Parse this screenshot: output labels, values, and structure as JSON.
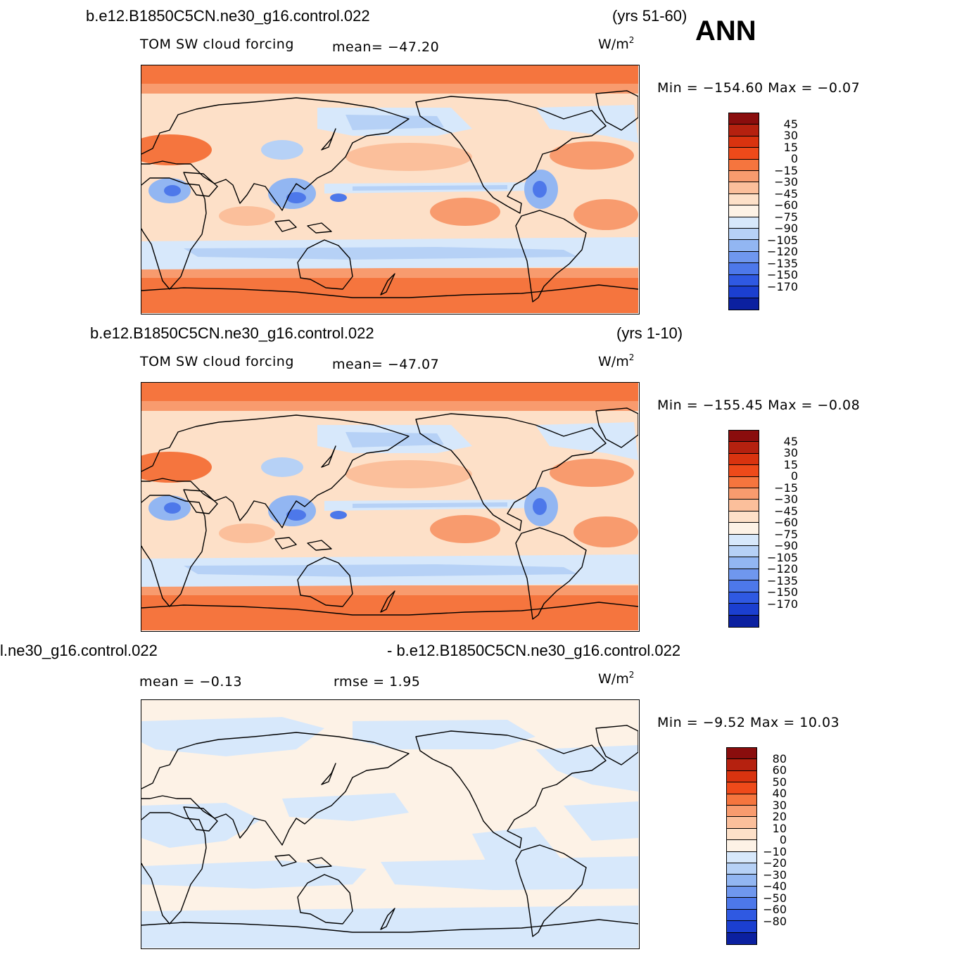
{
  "header": {
    "season": "ANN"
  },
  "panels": [
    {
      "id": "test",
      "case_left": "b.e12.B1850C5CN.ne30_g16.control.022",
      "case_right": "(yrs 51-60)",
      "field": "TOM SW cloud forcing",
      "stat1": "mean=  −47.20",
      "stat2": "",
      "units_base": "W/m",
      "units_exp": "2",
      "minmax": "Min  =  −154.60  Max  =    −0.07",
      "levels": [
        "45",
        "30",
        "15",
        "0",
        "−15",
        "−30",
        "−45",
        "−60",
        "−75",
        "−90",
        "−105",
        "−120",
        "−135",
        "−150",
        "−170"
      ],
      "colors": [
        "#8a0d0d",
        "#b5210f",
        "#d9330f",
        "#ee4a1a",
        "#f5753e",
        "#f89b6e",
        "#fbbf9b",
        "#fde0c8",
        "#fdf2e6",
        "#d7e8fb",
        "#b6d1f6",
        "#92b6f2",
        "#6f97ee",
        "#4d78ea",
        "#2f59e2",
        "#1b3fd0",
        "#0b20a0"
      ]
    },
    {
      "id": "control",
      "case_left": "b.e12.B1850C5CN.ne30_g16.control.022",
      "case_right": "(yrs 1-10)",
      "field": "TOM SW cloud forcing",
      "stat1": "mean=  −47.07",
      "stat2": "",
      "units_base": "W/m",
      "units_exp": "2",
      "minmax": "Min  =  −155.45  Max  =    −0.08",
      "levels": [
        "45",
        "30",
        "15",
        "0",
        "−15",
        "−30",
        "−45",
        "−60",
        "−75",
        "−90",
        "−105",
        "−120",
        "−135",
        "−150",
        "−170"
      ],
      "colors": [
        "#8a0d0d",
        "#b5210f",
        "#d9330f",
        "#ee4a1a",
        "#f5753e",
        "#f89b6e",
        "#fbbf9b",
        "#fde0c8",
        "#fdf2e6",
        "#d7e8fb",
        "#b6d1f6",
        "#92b6f2",
        "#6f97ee",
        "#4d78ea",
        "#2f59e2",
        "#1b3fd0",
        "#0b20a0"
      ]
    },
    {
      "id": "difference",
      "case_left": "l.ne30_g16.control.022",
      "case_right": "- b.e12.B1850C5CN.ne30_g16.control.022",
      "field": "",
      "stat1": "mean  =    −0.13",
      "stat2": "rmse  =     1.95",
      "units_base": "W/m",
      "units_exp": "2",
      "minmax": "Min  =    −9.52  Max  =    10.03",
      "levels": [
        "80",
        "60",
        "50",
        "40",
        "30",
        "20",
        "10",
        "0",
        "−10",
        "−20",
        "−30",
        "−40",
        "−50",
        "−60",
        "−80"
      ],
      "colors": [
        "#8a0d0d",
        "#b5210f",
        "#d9330f",
        "#ee4a1a",
        "#f5753e",
        "#f89b6e",
        "#fbbf9b",
        "#fde0c8",
        "#fdf2e6",
        "#d7e8fb",
        "#b6d1f6",
        "#92b6f2",
        "#6f97ee",
        "#4d78ea",
        "#2f59e2",
        "#1b3fd0",
        "#0b20a0"
      ]
    }
  ]
}
